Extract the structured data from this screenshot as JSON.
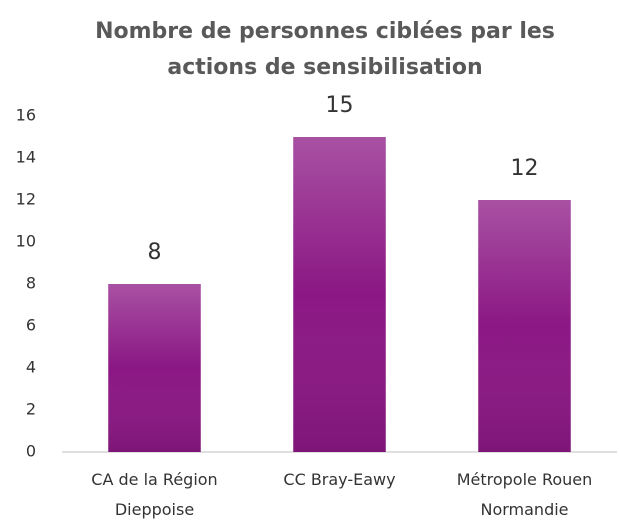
{
  "chart_data": {
    "type": "bar",
    "title": "Nombre de personnes ciblées par les actions de sensibilisation",
    "categories": [
      "CA de la Région Dieppoise",
      "CC Bray-Eawy",
      "Métropole Rouen Normandie"
    ],
    "values": [
      8,
      15,
      12
    ],
    "color": "#8b1784",
    "ylim": [
      0,
      16
    ],
    "yticks": [
      0,
      2,
      4,
      6,
      8,
      10,
      12,
      14,
      16
    ],
    "grid": false
  }
}
